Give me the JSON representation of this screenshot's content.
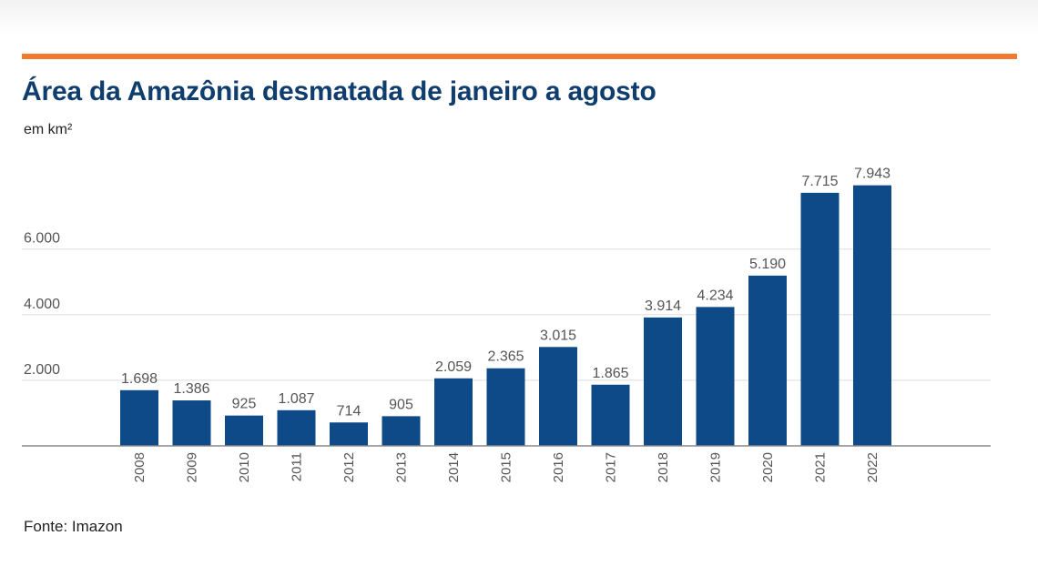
{
  "header": {
    "title": "Área da Amazônia desmatada de janeiro a agosto",
    "subtitle": "em km²"
  },
  "footer": {
    "source": "Fonte: Imazon"
  },
  "colors": {
    "accent": "#f47a2e",
    "title": "#0f3d6e",
    "bar": "#0d4a87",
    "grid": "#dddddd",
    "axis": "#888888"
  },
  "chart_data": {
    "type": "bar",
    "title": "Área da Amazônia desmatada de janeiro a agosto",
    "subtitle": "em km²",
    "xlabel": "",
    "ylabel": "",
    "categories": [
      "2008",
      "2009",
      "2010",
      "2011",
      "2012",
      "2013",
      "2014",
      "2015",
      "2016",
      "2017",
      "2018",
      "2019",
      "2020",
      "2021",
      "2022"
    ],
    "values": [
      1698,
      1386,
      925,
      1087,
      714,
      905,
      2059,
      2365,
      3015,
      1865,
      3914,
      4234,
      5190,
      7715,
      7943
    ],
    "value_labels": [
      "1.698",
      "1.386",
      "925",
      "1.087",
      "714",
      "905",
      "2.059",
      "2.365",
      "3.015",
      "1.865",
      "3.914",
      "4.234",
      "5.190",
      "7.715",
      "7.943"
    ],
    "yticks": [
      2000,
      4000,
      6000
    ],
    "ytick_labels": [
      "2.000",
      "4.000",
      "6.000"
    ],
    "ylim": [
      0,
      8000
    ],
    "grid": true,
    "legend": "none"
  }
}
